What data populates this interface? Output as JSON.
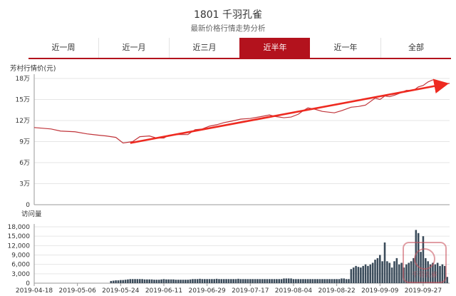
{
  "header": {
    "title": "1801 千羽孔雀",
    "subtitle": "最新价格行情走势分析"
  },
  "tabs": [
    {
      "label": "近一周",
      "active": false
    },
    {
      "label": "近一月",
      "active": false
    },
    {
      "label": "近三月",
      "active": false
    },
    {
      "label": "近半年",
      "active": true
    },
    {
      "label": "近一年",
      "active": false
    },
    {
      "label": "全部",
      "active": false
    }
  ],
  "colors": {
    "accent": "#b3121d",
    "price_line": "#c0343a",
    "trend_arrow": "#ee2a20",
    "volume_bar": "#3a4b5a"
  },
  "chart_data": [
    {
      "type": "line",
      "ylabel": "芳村行情价(元)",
      "ylim": [
        0,
        180000
      ],
      "y_ticks": [
        0,
        30000,
        60000,
        90000,
        120000,
        150000,
        180000
      ],
      "y_tick_labels": [
        "0",
        "3万",
        "6万",
        "9万",
        "12万",
        "15万",
        "18万"
      ],
      "x_range": [
        "2019-04-18",
        "2019-10-08"
      ],
      "x_tick_labels": [
        "2019-04-18",
        "2019-05-06",
        "2019-05-24",
        "2019-06-11",
        "2019-06-29",
        "2019-07-17",
        "2019-08-04",
        "2019-08-22",
        "2019-09-09",
        "2019-09-27"
      ],
      "grid": true,
      "series": [
        {
          "x": [
            "2019-04-18",
            "2019-04-25",
            "2019-04-29",
            "2019-05-05",
            "2019-05-10",
            "2019-05-15",
            "2019-05-18",
            "2019-05-22",
            "2019-05-25",
            "2019-05-29",
            "2019-06-01",
            "2019-06-05",
            "2019-06-08",
            "2019-06-11",
            "2019-06-13",
            "2019-06-17",
            "2019-06-21",
            "2019-06-24",
            "2019-06-27",
            "2019-06-30",
            "2019-07-03",
            "2019-07-06",
            "2019-07-09",
            "2019-07-13",
            "2019-07-17",
            "2019-07-22",
            "2019-07-25",
            "2019-07-27",
            "2019-07-31",
            "2019-08-03",
            "2019-08-06",
            "2019-08-08",
            "2019-08-10",
            "2019-08-13",
            "2019-08-16",
            "2019-08-21",
            "2019-08-24",
            "2019-08-28",
            "2019-08-31",
            "2019-09-03",
            "2019-09-05",
            "2019-09-07",
            "2019-09-09",
            "2019-09-11",
            "2019-09-13",
            "2019-09-15",
            "2019-09-18",
            "2019-09-20",
            "2019-09-23",
            "2019-09-25",
            "2019-09-27",
            "2019-09-29",
            "2019-10-01",
            "2019-10-03",
            "2019-10-06",
            "2019-10-08"
          ],
          "values": [
            110000,
            108000,
            105000,
            104000,
            101000,
            99000,
            98000,
            96000,
            88000,
            90000,
            97000,
            98000,
            95000,
            95000,
            99000,
            100000,
            100000,
            107000,
            108000,
            112000,
            114000,
            117000,
            119000,
            122000,
            123000,
            126000,
            128000,
            126000,
            124000,
            125000,
            129000,
            134000,
            138000,
            136000,
            133000,
            131000,
            134000,
            139000,
            140000,
            142000,
            147000,
            152000,
            150000,
            155000,
            154000,
            156000,
            160000,
            163000,
            163000,
            168000,
            170000,
            175000,
            178000,
            176000,
            172000,
            173000
          ]
        }
      ],
      "annotations": [
        {
          "type": "trend-arrow",
          "from": {
            "x": "2019-05-28",
            "y": 88000
          },
          "to": {
            "x": "2019-10-08",
            "y": 172000
          }
        }
      ]
    },
    {
      "type": "bar",
      "ylabel": "访问量",
      "ylim": [
        0,
        18000
      ],
      "y_ticks": [
        0,
        3000,
        6000,
        9000,
        12000,
        15000,
        18000
      ],
      "y_tick_labels": [
        "0",
        "3,000",
        "6,000",
        "9,000",
        "12,000",
        "15,000",
        "18,000"
      ],
      "x_range": [
        "2019-04-18",
        "2019-10-08"
      ],
      "x_tick_labels": [
        "2019-04-18",
        "2019-05-06",
        "2019-05-24",
        "2019-06-11",
        "2019-06-29",
        "2019-07-17",
        "2019-08-04",
        "2019-08-22",
        "2019-09-09",
        "2019-09-27"
      ],
      "start_date": "2019-04-18",
      "values": [
        0,
        0,
        0,
        0,
        0,
        0,
        0,
        0,
        0,
        0,
        0,
        0,
        0,
        0,
        0,
        0,
        0,
        0,
        0,
        0,
        0,
        0,
        0,
        0,
        0,
        0,
        0,
        0,
        0,
        0,
        0,
        0,
        700,
        800,
        900,
        900,
        1000,
        1000,
        1100,
        1200,
        1300,
        1300,
        1300,
        1300,
        1300,
        1300,
        1200,
        1200,
        1200,
        1200,
        1100,
        1100,
        1100,
        1200,
        1300,
        1200,
        1200,
        1200,
        1200,
        1100,
        1100,
        1100,
        1100,
        1100,
        1100,
        1200,
        1300,
        1300,
        1300,
        1400,
        1300,
        1300,
        1300,
        1300,
        1300,
        1300,
        1400,
        1300,
        1300,
        1300,
        1300,
        1300,
        1300,
        1300,
        1300,
        1400,
        1300,
        1300,
        1300,
        1300,
        1300,
        1300,
        1300,
        1300,
        1300,
        1300,
        1300,
        1300,
        1300,
        1300,
        1300,
        1300,
        1300,
        1300,
        1500,
        1500,
        1500,
        1500,
        1300,
        1300,
        1300,
        1300,
        1300,
        1300,
        1300,
        1300,
        1300,
        1300,
        1300,
        1300,
        1300,
        1300,
        1300,
        1300,
        1300,
        1300,
        1300,
        1300,
        1500,
        1500,
        1300,
        1300,
        4500,
        5000,
        5500,
        5200,
        5000,
        5500,
        6000,
        5500,
        6000,
        6500,
        7500,
        8000,
        9000,
        7000,
        13000,
        7000,
        6500,
        5000,
        7000,
        8000,
        6000,
        6500,
        5000,
        6000,
        6500,
        7000,
        8000,
        17000,
        16000,
        10000,
        15000,
        8000,
        7000,
        6000,
        6500,
        6000,
        6500,
        5500,
        6000,
        5500,
        2000
      ]
    }
  ],
  "watermark": {
    "text": "千羽孔雀"
  }
}
